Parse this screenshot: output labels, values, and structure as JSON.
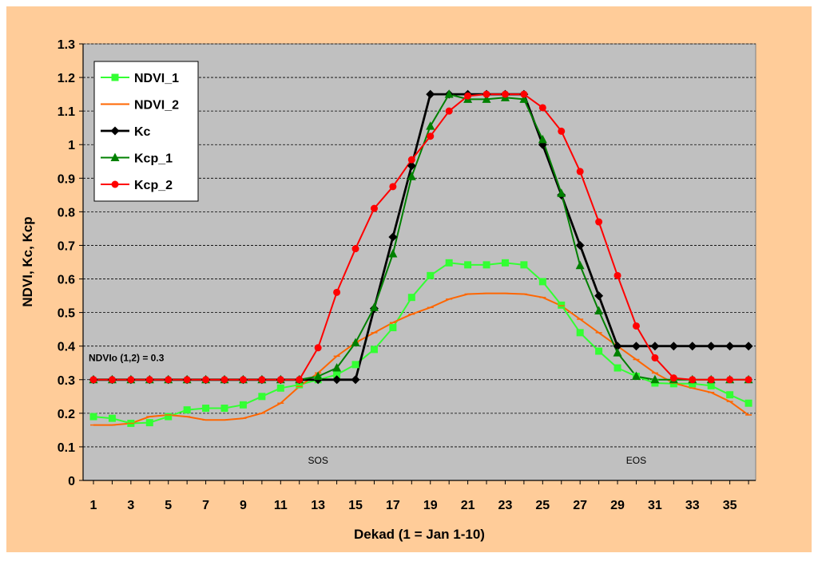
{
  "chart_data": {
    "type": "line",
    "title": "",
    "xlabel": "Dekad (1 = Jan 1-10)",
    "ylabel": "NDVI, Kc, Kcp",
    "xlim": [
      1,
      36
    ],
    "ylim": [
      0,
      1.3
    ],
    "x_ticks": [
      1,
      3,
      5,
      7,
      9,
      11,
      13,
      15,
      17,
      19,
      21,
      23,
      25,
      27,
      29,
      31,
      33,
      35
    ],
    "y_ticks": [
      0,
      0.1,
      0.2,
      0.3,
      0.4,
      0.5,
      0.6,
      0.7,
      0.8,
      0.9,
      1,
      1.1,
      1.2,
      1.3
    ],
    "y_tick_labels": [
      "0",
      "0.1",
      "0.2",
      "0.3",
      "0.4",
      "0.5",
      "0.6",
      "0.7",
      "0.8",
      "0.9",
      "1",
      "1.1",
      "1.2",
      "1.3"
    ],
    "grid": "horizontal-dashed",
    "legend_position": "top-left",
    "annotations": [
      {
        "text": "NDVIo (1,2) = 0.3",
        "x": 1,
        "y": 0.355,
        "anchor": "start"
      },
      {
        "text": "SOS",
        "x": 13,
        "y": 0.05,
        "anchor": "middle"
      },
      {
        "text": "EOS",
        "x": 30,
        "y": 0.05,
        "anchor": "middle"
      }
    ],
    "colors": {
      "page_background": "#FFCC99",
      "plot_background": "#C0C0C0",
      "chart_background": "#FFFFFF"
    },
    "series": [
      {
        "name": "NDVI_1",
        "color": "#33FF33",
        "marker": "square",
        "values": [
          0.19,
          0.185,
          0.17,
          0.172,
          0.19,
          0.21,
          0.215,
          0.215,
          0.225,
          0.25,
          0.275,
          0.285,
          0.3,
          0.315,
          0.345,
          0.39,
          0.455,
          0.545,
          0.61,
          0.648,
          0.642,
          0.642,
          0.648,
          0.642,
          0.592,
          0.522,
          0.44,
          0.385,
          0.335,
          0.31,
          0.29,
          0.288,
          0.288,
          0.282,
          0.255,
          0.23
        ]
      },
      {
        "name": "NDVI_2",
        "color": "#FF6600",
        "marker": "none",
        "values": [
          0.165,
          0.165,
          0.17,
          0.19,
          0.195,
          0.19,
          0.18,
          0.18,
          0.185,
          0.2,
          0.23,
          0.28,
          0.32,
          0.37,
          0.41,
          0.44,
          0.47,
          0.495,
          0.515,
          0.54,
          0.555,
          0.557,
          0.557,
          0.555,
          0.545,
          0.52,
          0.48,
          0.44,
          0.4,
          0.36,
          0.32,
          0.29,
          0.275,
          0.262,
          0.235,
          0.195
        ]
      },
      {
        "name": "Kc",
        "color": "#000000",
        "marker": "diamond",
        "values": [
          0.3,
          0.3,
          0.3,
          0.3,
          0.3,
          0.3,
          0.3,
          0.3,
          0.3,
          0.3,
          0.3,
          0.3,
          0.3,
          0.3,
          0.3,
          0.512,
          0.725,
          0.937,
          1.15,
          1.15,
          1.15,
          1.15,
          1.15,
          1.15,
          1.0,
          0.85,
          0.7,
          0.55,
          0.4,
          0.4,
          0.4,
          0.4,
          0.4,
          0.4,
          0.4,
          0.4
        ]
      },
      {
        "name": "Kcp_1",
        "color": "#008000",
        "marker": "triangle",
        "values": [
          0.3,
          0.3,
          0.3,
          0.3,
          0.3,
          0.3,
          0.3,
          0.3,
          0.3,
          0.3,
          0.3,
          0.3,
          0.31,
          0.335,
          0.41,
          0.515,
          0.675,
          0.905,
          1.055,
          1.15,
          1.135,
          1.135,
          1.14,
          1.135,
          1.015,
          0.855,
          0.64,
          0.505,
          0.38,
          0.31,
          0.3,
          0.3,
          0.3,
          0.3,
          0.3,
          0.3
        ]
      },
      {
        "name": "Kcp_2",
        "color": "#FF0000",
        "marker": "circle",
        "values": [
          0.3,
          0.3,
          0.3,
          0.3,
          0.3,
          0.3,
          0.3,
          0.3,
          0.3,
          0.3,
          0.3,
          0.3,
          0.395,
          0.56,
          0.69,
          0.81,
          0.875,
          0.955,
          1.025,
          1.1,
          1.145,
          1.15,
          1.15,
          1.15,
          1.11,
          1.04,
          0.92,
          0.77,
          0.61,
          0.46,
          0.365,
          0.305,
          0.3,
          0.3,
          0.3,
          0.3
        ]
      }
    ]
  }
}
